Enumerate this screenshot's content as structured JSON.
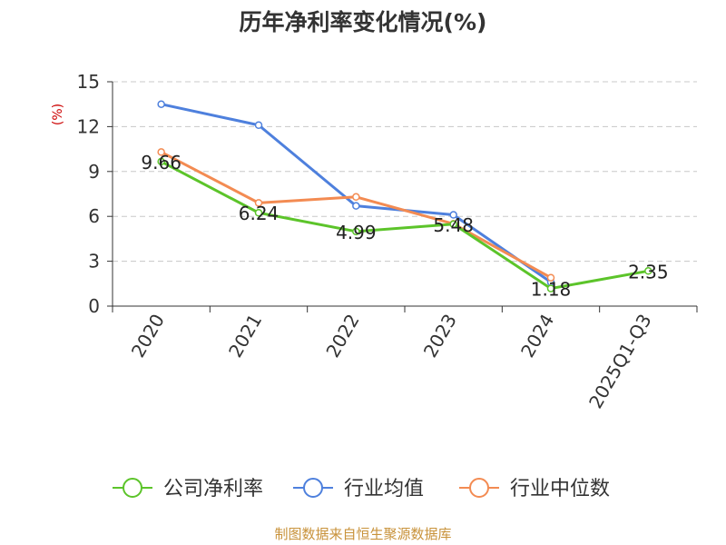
{
  "chart_data": {
    "type": "line",
    "title": "历年净利率变化情况(%)",
    "ylabel": "(%)",
    "xlabel": "",
    "categories": [
      "2020",
      "2021",
      "2022",
      "2023",
      "2024",
      "2025Q1-Q3"
    ],
    "ylim": [
      0,
      15
    ],
    "yticks": [
      0,
      3,
      6,
      9,
      12,
      15
    ],
    "grid": "horizontal dashed",
    "legend_position": "bottom",
    "series": [
      {
        "name": "公司净利率",
        "color": "#5cc42a",
        "values": [
          9.66,
          6.24,
          4.99,
          5.48,
          1.18,
          2.35
        ],
        "labels": [
          "9.66",
          "6.24",
          "4.99",
          "5.48",
          "1.18",
          "2.35"
        ]
      },
      {
        "name": "行业均值",
        "color": "#4e80dd",
        "values": [
          13.5,
          12.1,
          6.7,
          6.1,
          1.6,
          null
        ]
      },
      {
        "name": "行业中位数",
        "color": "#f38b52",
        "values": [
          10.3,
          6.9,
          7.3,
          5.5,
          1.9,
          null
        ]
      }
    ]
  },
  "footer": {
    "source": "制图数据来自恒生聚源数据库"
  },
  "colors": {
    "axis": "#333333",
    "grid": "#c8c8c8",
    "ylabel": "#cc0000",
    "footer": "#c8923a"
  }
}
